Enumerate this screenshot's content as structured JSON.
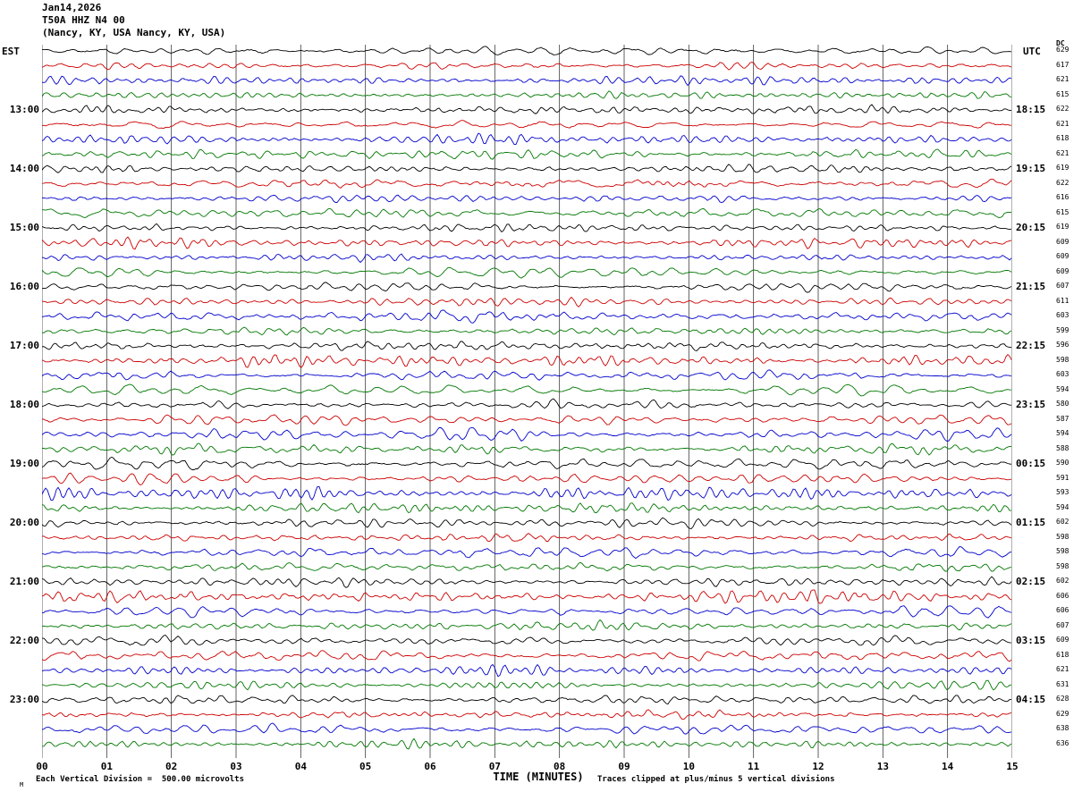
{
  "header": {
    "date": "Jan14,2026",
    "station": "T50A HHZ N4 00",
    "location": "(Nancy, KY, USA Nancy, KY, USA)"
  },
  "axes": {
    "left_label": "EST",
    "right_label": "UTC",
    "dc_label": "DC",
    "x_title": "TIME (MINUTES)",
    "x_ticks": [
      "00",
      "01",
      "02",
      "03",
      "04",
      "05",
      "06",
      "07",
      "08",
      "09",
      "10",
      "11",
      "12",
      "13",
      "14",
      "15"
    ]
  },
  "footer": {
    "left_note": "Each Vertical Division =  500.00 microvolts",
    "right_note": "Traces clipped at plus/minus 5 vertical divisions",
    "corner_mark": "M"
  },
  "colors": {
    "background": "#ffffff",
    "grid": "#3a3a3a",
    "text": "#000000",
    "trace_map": {
      "black": "#000000",
      "red": "#cc0000",
      "blue": "#0000cc",
      "green": "#007700"
    }
  },
  "chart_data": {
    "type": "line",
    "subtype": "helicorder-seismogram",
    "title": "T50A HHZ N4 00 — Jan14,2026 (Nancy, KY, USA)",
    "x_axis": {
      "label": "TIME (MINUTES)",
      "range_minutes": [
        0,
        15
      ],
      "tick_interval_minutes": 1,
      "grid": "vertical-only"
    },
    "minutes_per_row": 15,
    "amplitude_scale": "500.00 microvolts per vertical division",
    "clipping": "traces clipped at plus/minus 5 vertical divisions",
    "waveform_note": "continuous background noise wiggles on every row; no labeled numeric samples readable from pixels",
    "left_hour_labels": [
      "13:00",
      "14:00",
      "15:00",
      "16:00",
      "17:00",
      "18:00",
      "19:00",
      "20:00",
      "21:00",
      "22:00",
      "23:00"
    ],
    "right_hour_labels": [
      "18:15",
      "19:15",
      "20:15",
      "21:15",
      "22:15",
      "23:15",
      "00:15",
      "01:15",
      "02:15",
      "03:15",
      "04:15"
    ],
    "rows": [
      {
        "color": "black",
        "est": "",
        "utc": "",
        "dc": 629
      },
      {
        "color": "red",
        "est": "",
        "utc": "",
        "dc": 617
      },
      {
        "color": "blue",
        "est": "",
        "utc": "",
        "dc": 621
      },
      {
        "color": "green",
        "est": "",
        "utc": "",
        "dc": 615
      },
      {
        "color": "black",
        "est": "13:00",
        "utc": "18:15",
        "dc": 622
      },
      {
        "color": "red",
        "est": "",
        "utc": "",
        "dc": 621
      },
      {
        "color": "blue",
        "est": "",
        "utc": "",
        "dc": 618
      },
      {
        "color": "green",
        "est": "",
        "utc": "",
        "dc": 621
      },
      {
        "color": "black",
        "est": "14:00",
        "utc": "19:15",
        "dc": 619
      },
      {
        "color": "red",
        "est": "",
        "utc": "",
        "dc": 622
      },
      {
        "color": "blue",
        "est": "",
        "utc": "",
        "dc": 616
      },
      {
        "color": "green",
        "est": "",
        "utc": "",
        "dc": 615
      },
      {
        "color": "black",
        "est": "15:00",
        "utc": "20:15",
        "dc": 619
      },
      {
        "color": "red",
        "est": "",
        "utc": "",
        "dc": 609
      },
      {
        "color": "blue",
        "est": "",
        "utc": "",
        "dc": 609
      },
      {
        "color": "green",
        "est": "",
        "utc": "",
        "dc": 609
      },
      {
        "color": "black",
        "est": "16:00",
        "utc": "21:15",
        "dc": 607
      },
      {
        "color": "red",
        "est": "",
        "utc": "",
        "dc": 611
      },
      {
        "color": "blue",
        "est": "",
        "utc": "",
        "dc": 603
      },
      {
        "color": "green",
        "est": "",
        "utc": "",
        "dc": 599
      },
      {
        "color": "black",
        "est": "17:00",
        "utc": "22:15",
        "dc": 596
      },
      {
        "color": "red",
        "est": "",
        "utc": "",
        "dc": 598
      },
      {
        "color": "blue",
        "est": "",
        "utc": "",
        "dc": 603
      },
      {
        "color": "green",
        "est": "",
        "utc": "",
        "dc": 594
      },
      {
        "color": "black",
        "est": "18:00",
        "utc": "23:15",
        "dc": 580
      },
      {
        "color": "red",
        "est": "",
        "utc": "",
        "dc": 587
      },
      {
        "color": "blue",
        "est": "",
        "utc": "",
        "dc": 594
      },
      {
        "color": "green",
        "est": "",
        "utc": "",
        "dc": 588
      },
      {
        "color": "black",
        "est": "19:00",
        "utc": "00:15",
        "dc": 590
      },
      {
        "color": "red",
        "est": "",
        "utc": "",
        "dc": 591
      },
      {
        "color": "blue",
        "est": "",
        "utc": "",
        "dc": 593
      },
      {
        "color": "green",
        "est": "",
        "utc": "",
        "dc": 594
      },
      {
        "color": "black",
        "est": "20:00",
        "utc": "01:15",
        "dc": 602
      },
      {
        "color": "red",
        "est": "",
        "utc": "",
        "dc": 598
      },
      {
        "color": "blue",
        "est": "",
        "utc": "",
        "dc": 598
      },
      {
        "color": "green",
        "est": "",
        "utc": "",
        "dc": 598
      },
      {
        "color": "black",
        "est": "21:00",
        "utc": "02:15",
        "dc": 602
      },
      {
        "color": "red",
        "est": "",
        "utc": "",
        "dc": 606
      },
      {
        "color": "blue",
        "est": "",
        "utc": "",
        "dc": 606
      },
      {
        "color": "green",
        "est": "",
        "utc": "",
        "dc": 607
      },
      {
        "color": "black",
        "est": "22:00",
        "utc": "03:15",
        "dc": 609
      },
      {
        "color": "red",
        "est": "",
        "utc": "",
        "dc": 618
      },
      {
        "color": "blue",
        "est": "",
        "utc": "",
        "dc": 621
      },
      {
        "color": "green",
        "est": "",
        "utc": "",
        "dc": 631
      },
      {
        "color": "black",
        "est": "23:00",
        "utc": "04:15",
        "dc": 628
      },
      {
        "color": "red",
        "est": "",
        "utc": "",
        "dc": 629
      },
      {
        "color": "blue",
        "est": "",
        "utc": "",
        "dc": 638
      },
      {
        "color": "green",
        "est": "",
        "utc": "",
        "dc": 636
      }
    ]
  }
}
